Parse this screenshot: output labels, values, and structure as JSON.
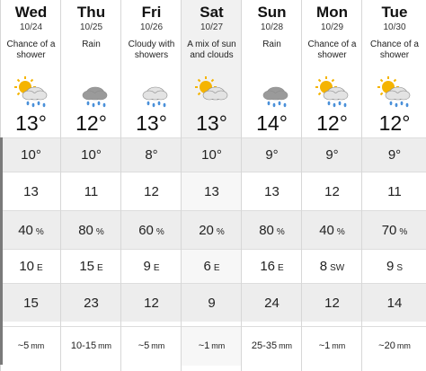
{
  "colors": {
    "sun": "#f5b400",
    "cloud_light": "#e3e3e3",
    "cloud_dark": "#9a9a9a",
    "rain": "#4a90d9",
    "row_shade": "#ededed",
    "col_shade": "#f1f1f1"
  },
  "days": [
    {
      "name": "Wed",
      "date": "10/24",
      "condition": "Chance of a shower",
      "icon": "sun-cloud-rain-icon",
      "temp": "13°",
      "low": "10°",
      "feels": "13",
      "precip_pct": "40",
      "precip_unit": "%",
      "wind_speed": "10",
      "wind_dir": "E",
      "gust": "15",
      "amount": "~5",
      "amount_unit": "mm"
    },
    {
      "name": "Thu",
      "date": "10/25",
      "condition": "Rain",
      "icon": "dark-cloud-rain-icon",
      "temp": "12°",
      "low": "10°",
      "feels": "11",
      "precip_pct": "80",
      "precip_unit": "%",
      "wind_speed": "15",
      "wind_dir": "E",
      "gust": "23",
      "amount": "10-15",
      "amount_unit": "mm"
    },
    {
      "name": "Fri",
      "date": "10/26",
      "condition": "Cloudy with showers",
      "icon": "cloud-rain-icon",
      "temp": "13°",
      "low": "8°",
      "feels": "12",
      "precip_pct": "60",
      "precip_unit": "%",
      "wind_speed": "9",
      "wind_dir": "E",
      "gust": "12",
      "amount": "~5",
      "amount_unit": "mm"
    },
    {
      "name": "Sat",
      "date": "10/27",
      "condition": "A mix of sun and clouds",
      "icon": "sun-cloud-icon",
      "temp": "13°",
      "low": "10°",
      "feels": "13",
      "precip_pct": "20",
      "precip_unit": "%",
      "wind_speed": "6",
      "wind_dir": "E",
      "gust": "9",
      "amount": "~1",
      "amount_unit": "mm"
    },
    {
      "name": "Sun",
      "date": "10/28",
      "condition": "Rain",
      "icon": "dark-cloud-rain-icon",
      "temp": "14°",
      "low": "9°",
      "feels": "13",
      "precip_pct": "80",
      "precip_unit": "%",
      "wind_speed": "16",
      "wind_dir": "E",
      "gust": "24",
      "amount": "25-35",
      "amount_unit": "mm"
    },
    {
      "name": "Mon",
      "date": "10/29",
      "condition": "Chance of a shower",
      "icon": "sun-cloud-rain-icon",
      "temp": "12°",
      "low": "9°",
      "feels": "12",
      "precip_pct": "40",
      "precip_unit": "%",
      "wind_speed": "8",
      "wind_dir": "SW",
      "gust": "12",
      "amount": "~1",
      "amount_unit": "mm"
    },
    {
      "name": "Tue",
      "date": "10/30",
      "condition": "Chance of a shower",
      "icon": "sun-cloud-rain-icon",
      "temp": "12°",
      "low": "9°",
      "feels": "11",
      "precip_pct": "70",
      "precip_unit": "%",
      "wind_speed": "9",
      "wind_dir": "S",
      "gust": "14",
      "amount": "~20",
      "amount_unit": "mm"
    }
  ]
}
